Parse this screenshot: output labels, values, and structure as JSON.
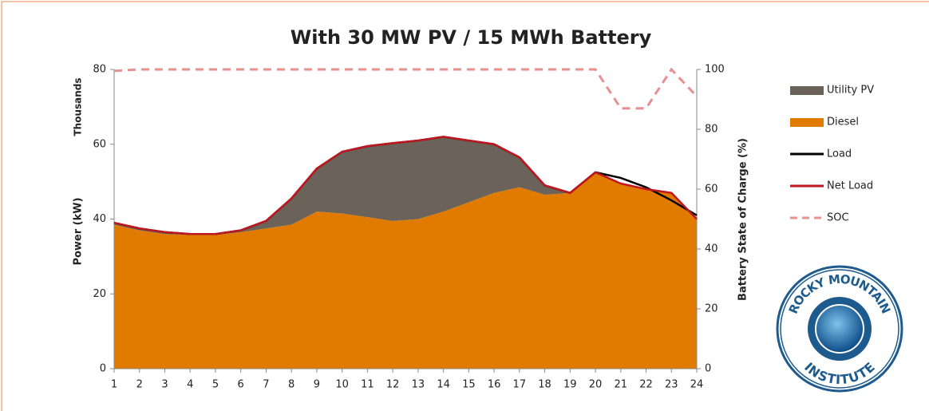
{
  "chart_data": {
    "type": "area",
    "title": "With 30 MW PV / 15 MWh Battery",
    "y_unit_label": "Thousands",
    "ylabel": "Power (kW)",
    "y2label": "Battery State of Charge (%)",
    "categories": [
      1,
      2,
      3,
      4,
      5,
      6,
      7,
      8,
      9,
      10,
      11,
      12,
      13,
      14,
      15,
      16,
      17,
      18,
      19,
      20,
      21,
      22,
      23,
      24
    ],
    "ylim": [
      0,
      80
    ],
    "yticks": [
      0,
      20,
      40,
      60,
      80
    ],
    "y2lim": [
      0,
      100
    ],
    "y2ticks": [
      0,
      20,
      40,
      60,
      80,
      100
    ],
    "stacked": true,
    "legend": "right",
    "series": [
      {
        "name": "Utility PV",
        "type": "area",
        "color": "#6b6259",
        "stack": 1,
        "values": [
          0.5,
          0.5,
          0.5,
          0.2,
          0.2,
          0.5,
          2,
          7,
          11.5,
          16.5,
          19,
          20.8,
          21,
          20,
          16.5,
          13,
          8,
          2.5,
          0,
          0,
          0,
          0,
          0,
          0
        ]
      },
      {
        "name": "Diesel",
        "type": "area",
        "color": "#e07b00",
        "stack": 0,
        "values": [
          38.5,
          37,
          36,
          35.8,
          35.8,
          36.5,
          37.5,
          38.5,
          42,
          41.5,
          40.5,
          39.5,
          40,
          42,
          44.5,
          47,
          48.5,
          46.5,
          47,
          52.5,
          49.5,
          48,
          47,
          40
        ]
      },
      {
        "name": "Load",
        "type": "line",
        "color": "#000000",
        "values": [
          39,
          37.5,
          36.5,
          36,
          36,
          37,
          39.5,
          45.5,
          53.5,
          58,
          59.5,
          60.3,
          61,
          62,
          61,
          60,
          56.5,
          49,
          47,
          52.5,
          51,
          48.5,
          45,
          41
        ]
      },
      {
        "name": "Net Load",
        "type": "line",
        "color": "#c0161f",
        "values": [
          39,
          37.5,
          36.5,
          36,
          36,
          37,
          39.5,
          45.5,
          53.5,
          58,
          59.5,
          60.3,
          61,
          62,
          61,
          60,
          56.5,
          49,
          47,
          52.5,
          49.5,
          48,
          47,
          40
        ]
      },
      {
        "name": "SOC",
        "type": "line",
        "dashed": true,
        "axis": "y2",
        "color": "#e88f8f",
        "values": [
          99.5,
          100,
          100,
          100,
          100,
          100,
          100,
          100,
          100,
          100,
          100,
          100,
          100,
          100,
          100,
          100,
          100,
          100,
          100,
          100,
          87,
          87,
          100,
          91
        ]
      }
    ]
  },
  "logo": {
    "top": "ROCKY MOUNTAIN",
    "bottom": "INSTITUTE"
  }
}
